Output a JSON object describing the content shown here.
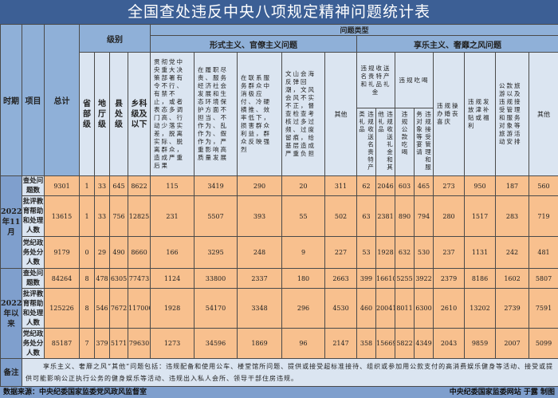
{
  "title": "全国查处违反中央八项规定精神问题统计表",
  "header": {
    "period": "时期",
    "item": "项目",
    "total": "总计",
    "level": "级别",
    "levels": [
      "省部级",
      "地厅级",
      "县处级",
      "乡科级及以下"
    ],
    "problem_type": "问题类型",
    "formalism": "形式主义、官僚主义问题",
    "hedonism": "享乐主义、奢靡之风问题",
    "formalism_cols": [
      "贯彻党中央重大决策部署有令不行、有禁不止，或者表态多调门高、行动少落实差，脱离实际、脱离群众，造成严重后果",
      "在履职尽责、服务经济社会发展和生态环境保护方面不担当、不作为、乱作为、假作为，严重影响高质量发展",
      "在联系服务群众中消极应付、冷硬横推、效率低下，损害群众利益，群众反映强烈",
      "文山会海反弹回潮，文风会风不实不正，督查检查考核过多过频、过度留痕，给基层造成严重负担",
      "其他"
    ],
    "gifts": "违规收送名贵特产和礼品礼金",
    "gifts_sub": [
      "违规收送名贵特产类礼品",
      "违规收送礼金和其他礼品"
    ],
    "dining": "违规吃喝",
    "dining_sub": [
      "违规公款吃喝",
      "违规接受管理和服务对象等宴请"
    ],
    "hedonism_cols": [
      "违规操办婚丧喜庆",
      "违规发放津补贴或福利",
      "公款旅游以及违规接受管理和服务对象等旅游活动安排",
      "其他"
    ]
  },
  "periods": [
    {
      "label": "2022年11月",
      "rows": [
        {
          "item": "查处问题数",
          "values": [
            "9301",
            "1",
            "33",
            "645",
            "8622",
            "115",
            "3419",
            "290",
            "20",
            "311",
            "62",
            "2046",
            "603",
            "465",
            "273",
            "950",
            "187",
            "560"
          ]
        },
        {
          "item": "批评教育帮助和处理人数",
          "values": [
            "13615",
            "1",
            "33",
            "756",
            "12825",
            "231",
            "5507",
            "393",
            "55",
            "502",
            "63",
            "2381",
            "890",
            "794",
            "280",
            "1517",
            "283",
            "719"
          ]
        },
        {
          "item": "党纪政务处分人数",
          "values": [
            "9179",
            "0",
            "29",
            "490",
            "8660",
            "166",
            "3295",
            "248",
            "9",
            "227",
            "53",
            "1928",
            "632",
            "530",
            "237",
            "1131",
            "242",
            "481"
          ]
        }
      ]
    },
    {
      "label": "2022年以来",
      "rows": [
        {
          "item": "查处问题数",
          "values": [
            "84264",
            "8",
            "478",
            "6305",
            "77473",
            "1124",
            "33800",
            "2337",
            "180",
            "2663",
            "399",
            "16610",
            "5255",
            "3922",
            "2379",
            "8186",
            "1602",
            "5807"
          ]
        },
        {
          "item": "批评教育帮助和处理人数",
          "values": [
            "125226",
            "8",
            "546",
            "7672",
            "117000",
            "1928",
            "54170",
            "3348",
            "296",
            "4530",
            "460",
            "20041",
            "8011",
            "6300",
            "2610",
            "13202",
            "2739",
            "7591"
          ]
        },
        {
          "item": "党纪政务处分人数",
          "values": [
            "85187",
            "7",
            "379",
            "5171",
            "79630",
            "1273",
            "34596",
            "1869",
            "96",
            "2147",
            "358",
            "15669",
            "5822",
            "4349",
            "2043",
            "9859",
            "2007",
            "5099"
          ]
        }
      ]
    }
  ],
  "note": {
    "label": "备注",
    "text": "享乐主义、奢靡之风“其他”问题包括：违规配备和使用公车、楼堂馆所问题、提供或接受超标准接待、组织或参加用公款支付的高消费娱乐健身等活动、接受或提供可能影响公正执行公务的健身娱乐等活动、违规出入私人会所、领导干部住房违规。"
  },
  "footer": {
    "source": "数据来源：中央纪委国家监委党风政风监督室",
    "credit": "中央纪委国家监委网站 于露 制图"
  },
  "colors": {
    "title_bg": "#3c5f95",
    "header_bg": "#8fb0d8",
    "light_bg": "#dbe5f1",
    "data_bg": "#f8c08e"
  }
}
